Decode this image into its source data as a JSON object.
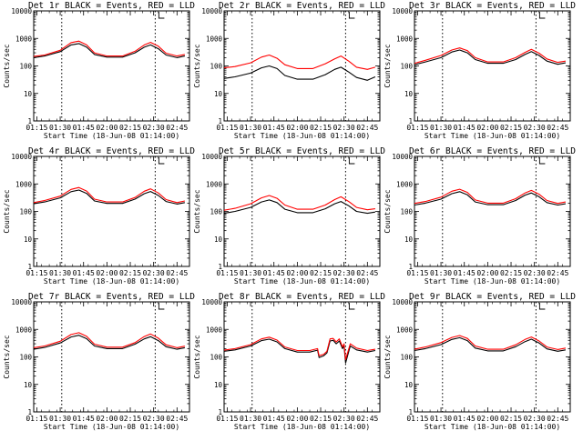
{
  "colors": {
    "events": "#000000",
    "lld": "#ff0000",
    "frame": "#000000",
    "marker": "#000000"
  },
  "chart_data": [
    {
      "type": "line",
      "title": "Det 1r BLACK = Events, RED = LLD",
      "xlabel": "Start Time (18-Jun-08 01:14:00)",
      "ylabel": "Counts/sec",
      "yscale": "log",
      "ylim": [
        1,
        10000
      ],
      "xlim": [
        "01:13",
        "02:53"
      ],
      "xticks": [
        "01:15",
        "01:30",
        "01:45",
        "02:00",
        "02:15",
        "02:30",
        "02:45"
      ],
      "yticks": [
        "1",
        "10",
        "100",
        "1000",
        "10000"
      ],
      "vlines": [
        "01:31",
        "02:31"
      ],
      "marker": "upper-right",
      "x": [
        "01:13",
        "01:20",
        "01:30",
        "01:37",
        "01:42",
        "01:47",
        "01:52",
        "02:00",
        "02:10",
        "02:18",
        "02:24",
        "02:28",
        "02:33",
        "02:38",
        "02:45",
        "02:50"
      ],
      "series": [
        {
          "color": "black",
          "values": [
            200,
            230,
            330,
            580,
            650,
            480,
            260,
            210,
            210,
            300,
            480,
            580,
            420,
            250,
            200,
            230
          ]
        },
        {
          "color": "red",
          "values": [
            220,
            250,
            370,
            700,
            800,
            580,
            300,
            230,
            230,
            340,
            580,
            720,
            520,
            290,
            230,
            260
          ]
        }
      ]
    },
    {
      "type": "line",
      "title": "Det 2r BLACK = Events, RED = LLD",
      "xlabel": "Start Time (18-Jun-08 01:14:00)",
      "ylabel": "Counts/sec",
      "yscale": "log",
      "ylim": [
        1,
        10000
      ],
      "xlim": [
        "01:13",
        "02:53"
      ],
      "xticks": [
        "01:15",
        "01:30",
        "01:45",
        "02:00",
        "02:15",
        "02:30",
        "02:45"
      ],
      "yticks": [
        "1",
        "10",
        "100",
        "1000",
        "10000"
      ],
      "vlines": [
        "01:31",
        "02:31"
      ],
      "marker": "upper-right",
      "x": [
        "01:13",
        "01:20",
        "01:30",
        "01:37",
        "01:42",
        "01:47",
        "01:52",
        "02:00",
        "02:10",
        "02:18",
        "02:24",
        "02:28",
        "02:33",
        "02:38",
        "02:45",
        "02:50"
      ],
      "series": [
        {
          "color": "black",
          "values": [
            35,
            40,
            55,
            85,
            100,
            80,
            45,
            33,
            33,
            48,
            75,
            90,
            60,
            38,
            30,
            40
          ]
        },
        {
          "color": "red",
          "values": [
            85,
            95,
            130,
            210,
            250,
            190,
            110,
            80,
            80,
            120,
            180,
            230,
            150,
            90,
            75,
            90
          ]
        }
      ]
    },
    {
      "type": "line",
      "title": "Det 3r BLACK = Events, RED = LLD",
      "xlabel": "Start Time (18-Jun-08 01:14:00)",
      "ylabel": "Counts/sec",
      "yscale": "log",
      "ylim": [
        1,
        10000
      ],
      "xlim": [
        "01:13",
        "02:53"
      ],
      "xticks": [
        "01:15",
        "01:30",
        "01:45",
        "02:00",
        "02:15",
        "02:30",
        "02:45"
      ],
      "yticks": [
        "1",
        "10",
        "100",
        "1000",
        "10000"
      ],
      "vlines": [
        "01:31",
        "02:31"
      ],
      "marker": "upper-right",
      "x": [
        "01:13",
        "01:20",
        "01:30",
        "01:37",
        "01:42",
        "01:47",
        "01:52",
        "02:00",
        "02:10",
        "02:18",
        "02:24",
        "02:28",
        "02:33",
        "02:38",
        "02:45",
        "02:50"
      ],
      "series": [
        {
          "color": "black",
          "values": [
            110,
            140,
            200,
            320,
            380,
            300,
            170,
            125,
            125,
            170,
            260,
            330,
            240,
            150,
            115,
            130
          ]
        },
        {
          "color": "red",
          "values": [
            125,
            160,
            240,
            380,
            450,
            360,
            200,
            140,
            140,
            200,
            310,
            400,
            290,
            180,
            135,
            150
          ]
        }
      ]
    },
    {
      "type": "line",
      "title": "Det 4r BLACK = Events, RED = LLD",
      "xlabel": "Start Time (18-Jun-08 01:14:00)",
      "ylabel": "Counts/sec",
      "yscale": "log",
      "ylim": [
        1,
        10000
      ],
      "xlim": [
        "01:13",
        "02:53"
      ],
      "xticks": [
        "01:15",
        "01:30",
        "01:45",
        "02:00",
        "02:15",
        "02:30",
        "02:45"
      ],
      "yticks": [
        "1",
        "10",
        "100",
        "1000",
        "10000"
      ],
      "vlines": [
        "01:31",
        "02:31"
      ],
      "marker": "upper-right",
      "x": [
        "01:13",
        "01:20",
        "01:30",
        "01:37",
        "01:42",
        "01:47",
        "01:52",
        "02:00",
        "02:10",
        "02:18",
        "02:24",
        "02:28",
        "02:33",
        "02:38",
        "02:45",
        "02:50"
      ],
      "series": [
        {
          "color": "black",
          "values": [
            190,
            220,
            310,
            520,
            600,
            450,
            240,
            195,
            195,
            280,
            440,
            530,
            380,
            230,
            185,
            210
          ]
        },
        {
          "color": "red",
          "values": [
            210,
            250,
            360,
            630,
            740,
            550,
            280,
            220,
            220,
            320,
            540,
            660,
            470,
            270,
            210,
            240
          ]
        }
      ]
    },
    {
      "type": "line",
      "title": "Det 5r BLACK = Events, RED = LLD",
      "xlabel": "Start Time (18-Jun-08 01:14:00)",
      "ylabel": "Counts/sec",
      "yscale": "log",
      "ylim": [
        1,
        10000
      ],
      "xlim": [
        "01:13",
        "02:53"
      ],
      "xticks": [
        "01:15",
        "01:30",
        "01:45",
        "02:00",
        "02:15",
        "02:30",
        "02:45"
      ],
      "yticks": [
        "1",
        "10",
        "100",
        "1000",
        "10000"
      ],
      "vlines": [
        "01:31",
        "02:31"
      ],
      "marker": "upper-right",
      "x": [
        "01:13",
        "01:20",
        "01:30",
        "01:37",
        "01:42",
        "01:47",
        "01:52",
        "02:00",
        "02:10",
        "02:18",
        "02:24",
        "02:28",
        "02:33",
        "02:38",
        "02:45",
        "02:50"
      ],
      "series": [
        {
          "color": "black",
          "values": [
            85,
            100,
            140,
            220,
            260,
            210,
            120,
            90,
            90,
            125,
            190,
            230,
            160,
            100,
            85,
            95
          ]
        },
        {
          "color": "red",
          "values": [
            110,
            130,
            190,
            310,
            380,
            300,
            170,
            120,
            120,
            170,
            270,
            340,
            230,
            140,
            115,
            125
          ]
        }
      ]
    },
    {
      "type": "line",
      "title": "Det 6r BLACK = Events, RED = LLD",
      "xlabel": "Start Time (18-Jun-08 01:14:00)",
      "ylabel": "Counts/sec",
      "yscale": "log",
      "ylim": [
        1,
        10000
      ],
      "xlim": [
        "01:13",
        "02:53"
      ],
      "xticks": [
        "01:15",
        "01:30",
        "01:45",
        "02:00",
        "02:15",
        "02:30",
        "02:45"
      ],
      "yticks": [
        "1",
        "10",
        "100",
        "1000",
        "10000"
      ],
      "vlines": [
        "01:31",
        "02:31"
      ],
      "marker": "upper-right",
      "x": [
        "01:13",
        "01:20",
        "01:30",
        "01:37",
        "01:42",
        "01:47",
        "01:52",
        "02:00",
        "02:10",
        "02:18",
        "02:24",
        "02:28",
        "02:33",
        "02:38",
        "02:45",
        "02:50"
      ],
      "series": [
        {
          "color": "black",
          "values": [
            170,
            200,
            280,
            440,
            520,
            400,
            220,
            175,
            175,
            250,
            390,
            470,
            340,
            210,
            170,
            190
          ]
        },
        {
          "color": "red",
          "values": [
            195,
            230,
            330,
            540,
            640,
            490,
            260,
            200,
            200,
            290,
            470,
            580,
            420,
            250,
            195,
            220
          ]
        }
      ]
    },
    {
      "type": "line",
      "title": "Det 7r BLACK = Events, RED = LLD",
      "xlabel": "Start Time (18-Jun-08 01:14:00)",
      "ylabel": "Counts/sec",
      "yscale": "log",
      "ylim": [
        1,
        10000
      ],
      "xlim": [
        "01:13",
        "02:53"
      ],
      "xticks": [
        "01:15",
        "01:30",
        "01:45",
        "02:00",
        "02:15",
        "02:30",
        "02:45"
      ],
      "yticks": [
        "1",
        "10",
        "100",
        "1000",
        "10000"
      ],
      "vlines": [
        "01:31",
        "02:31"
      ],
      "marker": "upper-right",
      "x": [
        "01:13",
        "01:20",
        "01:30",
        "01:37",
        "01:42",
        "01:47",
        "01:52",
        "02:00",
        "02:10",
        "02:18",
        "02:24",
        "02:28",
        "02:33",
        "02:38",
        "02:45",
        "02:50"
      ],
      "series": [
        {
          "color": "black",
          "values": [
            190,
            220,
            320,
            530,
            610,
            460,
            250,
            200,
            200,
            290,
            450,
            540,
            390,
            235,
            190,
            215
          ]
        },
        {
          "color": "red",
          "values": [
            215,
            250,
            370,
            650,
            760,
            560,
            290,
            225,
            225,
            330,
            550,
            680,
            480,
            275,
            215,
            245
          ]
        }
      ]
    },
    {
      "type": "line",
      "title": "Det 8r BLACK = Events, RED = LLD",
      "xlabel": "Start Time (18-Jun-08 01:14:00)",
      "ylabel": "Counts/sec",
      "yscale": "log",
      "ylim": [
        1,
        10000
      ],
      "xlim": [
        "01:13",
        "02:53"
      ],
      "xticks": [
        "01:15",
        "01:30",
        "01:45",
        "02:00",
        "02:15",
        "02:30",
        "02:45"
      ],
      "yticks": [
        "1",
        "10",
        "100",
        "1000",
        "10000"
      ],
      "vlines": [
        "01:31",
        "02:31"
      ],
      "marker": "upper-right",
      "x": [
        "01:13",
        "01:20",
        "01:30",
        "01:37",
        "01:42",
        "01:47",
        "01:52",
        "02:00",
        "02:08",
        "02:13",
        "02:14",
        "02:17",
        "02:19",
        "02:21",
        "02:23",
        "02:25",
        "02:27",
        "02:29",
        "02:30",
        "02:31",
        "02:34",
        "02:38",
        "02:45",
        "02:50"
      ],
      "series": [
        {
          "color": "black",
          "values": [
            160,
            180,
            250,
            390,
            440,
            350,
            200,
            150,
            150,
            175,
            95,
            110,
            140,
            380,
            400,
            300,
            380,
            200,
            250,
            60,
            250,
            180,
            150,
            170
          ]
        },
        {
          "color": "red",
          "values": [
            175,
            200,
            280,
            450,
            520,
            410,
            230,
            170,
            170,
            200,
            110,
            125,
            160,
            450,
            470,
            350,
            450,
            230,
            300,
            80,
            300,
            210,
            170,
            190
          ]
        }
      ]
    },
    {
      "type": "line",
      "title": "Det 9r BLACK = Events, RED = LLD",
      "xlabel": "Start Time (18-Jun-08 01:14:00)",
      "ylabel": "Counts/sec",
      "yscale": "log",
      "ylim": [
        1,
        10000
      ],
      "xlim": [
        "01:13",
        "02:53"
      ],
      "xticks": [
        "01:15",
        "01:30",
        "01:45",
        "02:00",
        "02:15",
        "02:30",
        "02:45"
      ],
      "yticks": [
        "1",
        "10",
        "100",
        "1000",
        "10000"
      ],
      "vlines": [
        "01:31",
        "02:31"
      ],
      "marker": "upper-right",
      "x": [
        "01:13",
        "01:20",
        "01:30",
        "01:37",
        "01:42",
        "01:47",
        "01:52",
        "02:00",
        "02:10",
        "02:18",
        "02:24",
        "02:28",
        "02:33",
        "02:38",
        "02:45",
        "02:50"
      ],
      "series": [
        {
          "color": "black",
          "values": [
            170,
            200,
            280,
            430,
            500,
            390,
            210,
            165,
            165,
            235,
            360,
            440,
            320,
            195,
            160,
            180
          ]
        },
        {
          "color": "red",
          "values": [
            190,
            230,
            330,
            510,
            600,
            470,
            250,
            190,
            190,
            275,
            430,
            530,
            380,
            230,
            185,
            210
          ]
        }
      ]
    }
  ]
}
